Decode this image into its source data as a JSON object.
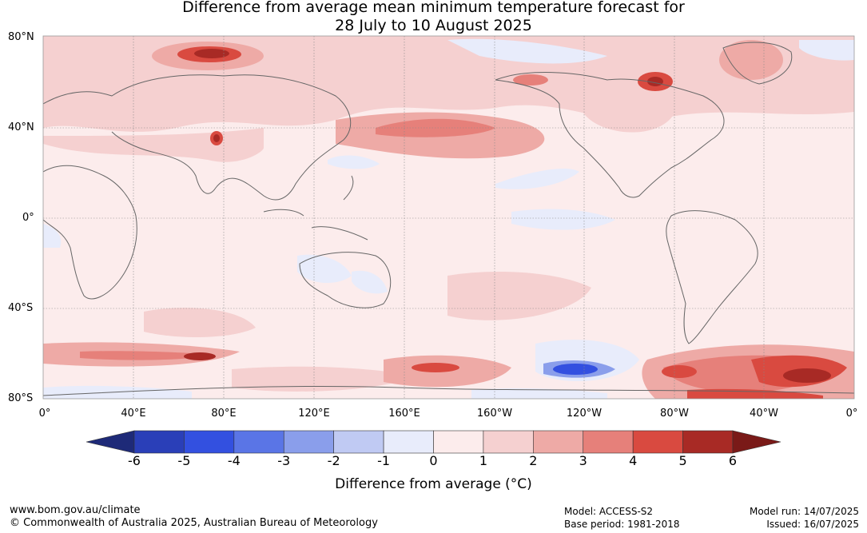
{
  "title_line1": "Difference from average mean minimum temperature forecast for",
  "title_line2": "28 July to 10 August 2025",
  "lat_labels": [
    "80°N",
    "40°N",
    "0°",
    "40°S",
    "80°S"
  ],
  "lon_labels": [
    "0°",
    "40°E",
    "80°E",
    "120°E",
    "160°E",
    "160°W",
    "120°W",
    "80°W",
    "40°W",
    "0°"
  ],
  "colorbar": {
    "ticks": [
      "-6",
      "-5",
      "-4",
      "-3",
      "-2",
      "-1",
      "0",
      "1",
      "2",
      "3",
      "4",
      "5",
      "6"
    ],
    "colors": [
      "#1e2a78",
      "#2a3fb8",
      "#3350e0",
      "#5a75e6",
      "#8a9eeb",
      "#c0caf3",
      "#e8ecfb",
      "#fcecec",
      "#f5d0d0",
      "#eeaaa6",
      "#e6807a",
      "#d94a40",
      "#a82a25",
      "#7a1a18"
    ],
    "label": "Difference from average (°C)"
  },
  "footer": {
    "url": "www.bom.gov.au/climate",
    "copyright": "© Commonwealth of Australia 2025, Australian Bureau of Meteorology",
    "model": "Model: ACCESS-S2",
    "base_period": "Base period: 1981-2018",
    "model_run": "Model run: 14/07/2025",
    "issued": "Issued: 16/07/2025"
  }
}
